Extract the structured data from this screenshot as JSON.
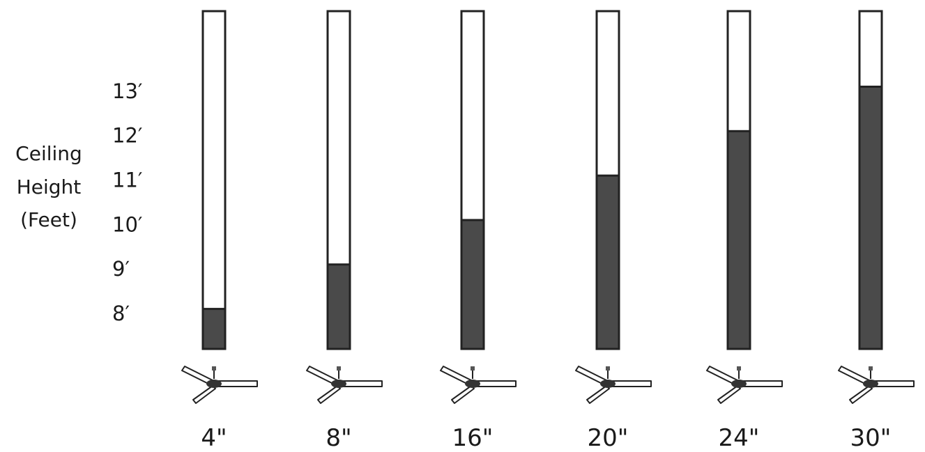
{
  "chart_data": {
    "type": "bar",
    "ylabel_lines": [
      "Ceiling",
      "Height",
      "(Feet)"
    ],
    "y_ticks": [
      "8′",
      "9′",
      "10′",
      "11′",
      "12′",
      "13′"
    ],
    "categories": [
      "4\"",
      "8\"",
      "16\"",
      "20\"",
      "24\"",
      "30\""
    ],
    "values": [
      8.1,
      9.1,
      10.1,
      11.1,
      12.1,
      13.1
    ],
    "ylim": [
      7.2,
      14.8
    ],
    "grid": false,
    "colors": {
      "fill": "#4a4a4a",
      "empty": "#ffffff",
      "outline": "#222222"
    },
    "category_icon": "ceiling-fan-icon"
  }
}
